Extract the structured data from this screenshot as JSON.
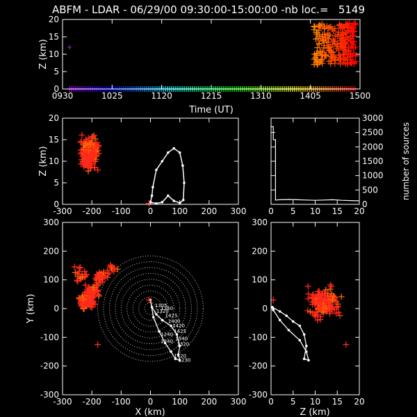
{
  "title": "ABFM - LDAR - 06/29/00 09:30:00-15:00:00 -nb loc.=   5149",
  "colors": {
    "background": "#000000",
    "axes": "#ffffff",
    "track": "#ffffff",
    "range_rings": "#ffffff",
    "marker_main": "#ff2a1a"
  },
  "chart_data": [
    {
      "id": "time_height",
      "type": "scatter",
      "xlabel": "Time (UT)",
      "ylabel": "Z (km)",
      "xlim": [
        "0930",
        "1500"
      ],
      "ylim": [
        0,
        20
      ],
      "xticks": [
        "0930",
        "1025",
        "1120",
        "1215",
        "1310",
        "1405",
        "1500"
      ],
      "yticks": [
        "0",
        "5",
        "10",
        "15",
        "20"
      ],
      "colorbar_hue_range": [
        280,
        0
      ],
      "cluster": {
        "time_range": [
          "1405",
          "1500"
        ],
        "z_range": [
          7,
          19
        ],
        "note": "dense lightning source cluster"
      }
    },
    {
      "id": "x_z",
      "type": "scatter",
      "xlabel": "",
      "ylabel": "Z (km)",
      "xlim": [
        -300,
        300
      ],
      "ylim": [
        0,
        20
      ],
      "xticks": [
        "-300",
        "-200",
        "-100",
        "0",
        "100",
        "200",
        "300"
      ],
      "yticks": [
        "0",
        "5",
        "10",
        "15",
        "20"
      ],
      "cluster": {
        "x_range": [
          -260,
          -160
        ],
        "z_range": [
          5,
          19
        ]
      }
    },
    {
      "id": "histogram",
      "type": "line",
      "xlabel": "",
      "ylabel": "number of sources",
      "xlim": [
        0,
        20
      ],
      "ylim": [
        0,
        3000
      ],
      "xticks": [
        "0",
        "5",
        "10",
        "15",
        "20"
      ],
      "yticks": [
        "0",
        "500",
        "1000",
        "1500",
        "2000",
        "2500",
        "3000"
      ],
      "x": [
        0,
        0.5,
        0.5,
        1,
        1,
        2,
        4,
        6,
        8,
        10,
        12,
        14,
        16,
        18,
        20
      ],
      "values": [
        2700,
        2700,
        2250,
        2250,
        150,
        160,
        170,
        160,
        150,
        140,
        150,
        160,
        140,
        130,
        120
      ]
    },
    {
      "id": "x_y",
      "type": "scatter",
      "xlabel": "X (km)",
      "ylabel": "Y (km)",
      "xlim": [
        -300,
        300
      ],
      "ylim": [
        -300,
        300
      ],
      "xticks": [
        "-300",
        "-200",
        "-100",
        "0",
        "100",
        "200",
        "300"
      ],
      "yticks": [
        "-300",
        "-200",
        "-100",
        "0",
        "100",
        "200",
        "300"
      ],
      "range_rings_km": [
        20,
        40,
        60,
        80,
        100,
        120,
        140,
        160,
        180
      ],
      "track_labels": [
        "1305",
        "1320",
        "1350",
        "1425",
        "1400",
        "1420",
        "1425",
        "1240",
        "1340",
        "1320",
        "1240",
        "1420",
        "1230"
      ]
    },
    {
      "id": "z_y",
      "type": "scatter",
      "xlabel": "Z (km)",
      "ylabel": "",
      "xlim": [
        0,
        20
      ],
      "ylim": [
        -300,
        300
      ],
      "xticks": [
        "0",
        "5",
        "10",
        "15",
        "20"
      ],
      "yticks": [
        "-300",
        "-200",
        "-100",
        "0",
        "100",
        "200",
        "300"
      ]
    }
  ]
}
